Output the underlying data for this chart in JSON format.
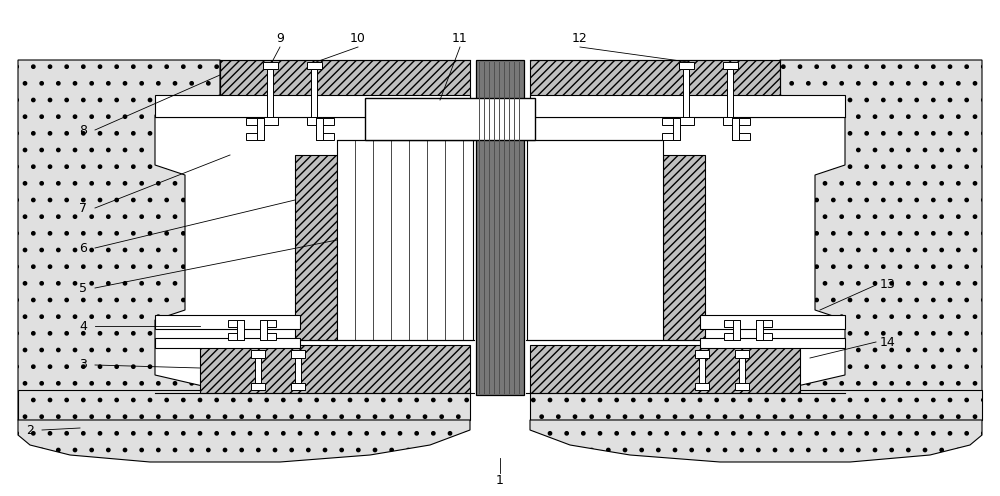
{
  "bg_color": "#ffffff",
  "lw_main": 0.8,
  "lw_thin": 0.5,
  "concrete_fill": "#e8e8e8",
  "concrete_fill2": "#d0d0d0",
  "hatch_fill": "#d8d8d8",
  "white": "#ffffff",
  "dark_gray": "#808080",
  "mid_gray": "#b0b0b0",
  "center_col_fill": "#909090",
  "center_col_dark": "#606060"
}
